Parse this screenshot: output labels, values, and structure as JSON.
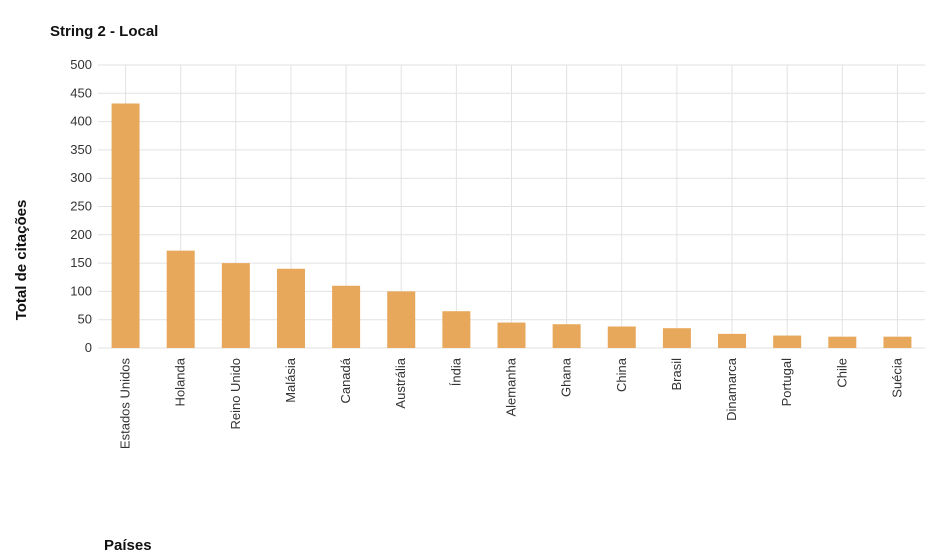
{
  "chart_data": {
    "type": "bar",
    "title": "String 2 - Local",
    "xlabel": "Países",
    "ylabel": "Total de citações",
    "categories": [
      "Estados Unidos",
      "Holanda",
      "Reino Unido",
      "Malásia",
      "Canadá",
      "Austrália",
      "Índia",
      "Alemanha",
      "Ghana",
      "China",
      "Brasil",
      "Dinamarca",
      "Portugal",
      "Chile",
      "Suécia"
    ],
    "values": [
      432,
      172,
      150,
      140,
      110,
      100,
      65,
      45,
      42,
      38,
      35,
      25,
      22,
      20,
      20
    ],
    "ylim": [
      0,
      500
    ],
    "yticks": [
      0,
      50,
      100,
      150,
      200,
      250,
      300,
      350,
      400,
      450,
      500
    ],
    "grid": true,
    "bar_color": "#e8a85c",
    "grid_color": "#e2e2e2"
  }
}
